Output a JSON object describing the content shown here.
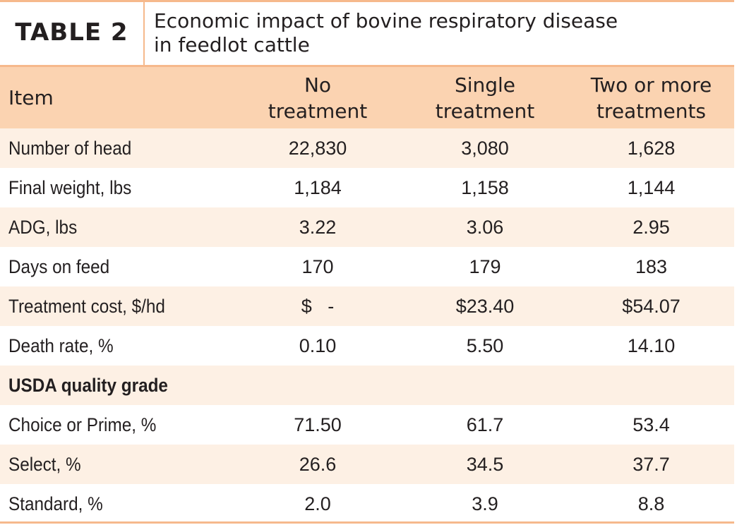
{
  "table_label": "TABLE 2",
  "title_lines": [
    "Economic impact of bovine respiratory disease",
    "in feedlot cattle"
  ],
  "header": {
    "item": "Item",
    "col1": [
      "No",
      "treatment"
    ],
    "col2": [
      "Single",
      "treatment"
    ],
    "col3": [
      "Two or more",
      "treatments"
    ]
  },
  "rows": [
    {
      "label": "Number of head",
      "values": [
        "22,830",
        "3,080",
        "1,628"
      ]
    },
    {
      "label": "Final weight, lbs",
      "values": [
        "1,184",
        "1,158",
        "1,144"
      ]
    },
    {
      "label": "ADG, lbs",
      "values": [
        "3.22",
        "3.06",
        "2.95"
      ]
    },
    {
      "label": "Days on feed",
      "values": [
        "170",
        "179",
        "183"
      ]
    },
    {
      "label": "Treatment cost, $/hd",
      "values": [
        "$   -",
        "$23.40",
        "$54.07"
      ]
    },
    {
      "label": "Death rate, %",
      "values": [
        "0.10",
        "5.50",
        "14.10"
      ]
    },
    {
      "label": "USDA quality grade",
      "values": [
        "",
        "",
        ""
      ]
    },
    {
      "label": "Choice or Prime, %",
      "values": [
        "71.50",
        "61.7",
        "53.4"
      ]
    },
    {
      "label": "Select, %",
      "values": [
        "26.6",
        "34.5",
        "37.7"
      ]
    },
    {
      "label": "Standard, %",
      "values": [
        "2.0",
        "3.9",
        "8.8"
      ]
    }
  ],
  "colors": {
    "accent": "#f6b98c",
    "header_bg": "#fbd3b1",
    "stripe_bg": "#fdf0e4"
  }
}
